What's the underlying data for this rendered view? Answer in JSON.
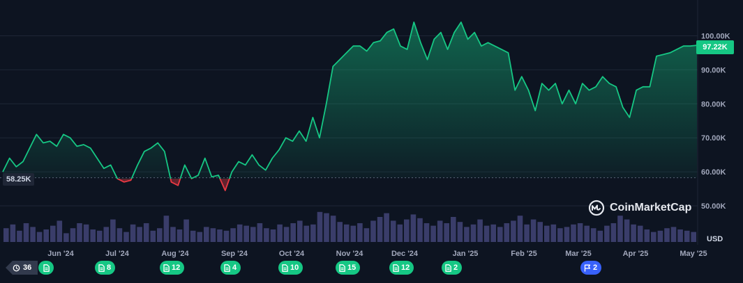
{
  "chart_data": {
    "type": "area",
    "title": "",
    "xlabel": "",
    "ylabel": "",
    "currency": "USD",
    "ylim": [
      50000,
      107000
    ],
    "y_ticks": [
      "100.00K",
      "90.00K",
      "80.00K",
      "70.00K",
      "60.00K",
      "50.00K"
    ],
    "x_ticks": [
      "Jun '24",
      "Jul '24",
      "Aug '24",
      "Sep '24",
      "Oct '24",
      "Nov '24",
      "Dec '24",
      "Jan '25",
      "Feb '25",
      "Mar '25",
      "Apr '25",
      "May '25"
    ],
    "baseline_value": 58250,
    "baseline_label": "58.25K",
    "current_label": "97.22K",
    "grid": true,
    "colors": {
      "up": "#16c784",
      "down": "#ea3943",
      "background": "#0d1421",
      "volume": "#3a3d6a"
    },
    "series": [
      {
        "values": [
          60000,
          64000,
          61500,
          63000,
          67000,
          71000,
          68500,
          69000,
          67500,
          71000,
          70000,
          67500,
          68000,
          67000,
          64000,
          61000,
          62000,
          58000,
          57000,
          57500,
          62000,
          66000,
          67000,
          68500,
          66000,
          57000,
          56000,
          62000,
          58000,
          59000,
          64000,
          58500,
          59000,
          54500,
          60000,
          63000,
          62000,
          65000,
          62000,
          60500,
          64000,
          66500,
          70000,
          69000,
          72000,
          69000,
          76000,
          70000,
          80000,
          91000,
          93000,
          95000,
          97000,
          97000,
          95500,
          98000,
          98500,
          101000,
          102000,
          97000,
          96000,
          104000,
          98000,
          93000,
          99000,
          101000,
          96000,
          101000,
          104000,
          99000,
          101000,
          97000,
          98000,
          97000,
          96000,
          95000,
          84000,
          88000,
          84000,
          78000,
          86000,
          84000,
          86000,
          80000,
          84000,
          80000,
          86000,
          84000,
          85000,
          88000,
          86000,
          85000,
          79000,
          76000,
          84000,
          85000,
          85000,
          94000,
          94500,
          95000,
          96000,
          97000,
          97000,
          97220
        ]
      }
    ],
    "volume": [
      22,
      28,
      18,
      30,
      24,
      16,
      20,
      26,
      34,
      14,
      22,
      30,
      28,
      20,
      18,
      24,
      36,
      22,
      16,
      28,
      24,
      30,
      18,
      22,
      42,
      24,
      20,
      36,
      18,
      16,
      24,
      22,
      20,
      18,
      22,
      28,
      26,
      24,
      30,
      22,
      20,
      28,
      24,
      30,
      34,
      26,
      28,
      48,
      46,
      42,
      32,
      28,
      26,
      30,
      22,
      34,
      40,
      46,
      34,
      28,
      36,
      44,
      38,
      30,
      26,
      34,
      30,
      40,
      32,
      24,
      28,
      36,
      26,
      28,
      24,
      30,
      34,
      42,
      28,
      36,
      32,
      26,
      28,
      22,
      24,
      28,
      30,
      26,
      22,
      18,
      26,
      30,
      42,
      36,
      28,
      26,
      20,
      16,
      18,
      22,
      24,
      20,
      18,
      16
    ],
    "annotations": [
      {
        "x": "Jun '24",
        "count": "",
        "kind": "news"
      },
      {
        "x": "Jul '24",
        "count": "8",
        "kind": "news"
      },
      {
        "x": "Aug '24",
        "count": "12",
        "kind": "news"
      },
      {
        "x": "Sep '24",
        "count": "4",
        "kind": "news"
      },
      {
        "x": "Oct '24",
        "count": "10",
        "kind": "news"
      },
      {
        "x": "Nov '24",
        "count": "15",
        "kind": "news"
      },
      {
        "x": "Dec '24",
        "count": "12",
        "kind": "news"
      },
      {
        "x": "Jan '25",
        "count": "2",
        "kind": "news"
      },
      {
        "x": "Mar '25",
        "count": "2",
        "kind": "flag"
      }
    ]
  },
  "history_count": "36",
  "logo": {
    "text": "CoinMarketCap",
    "icon": "coinmarketcap-logo-icon"
  }
}
